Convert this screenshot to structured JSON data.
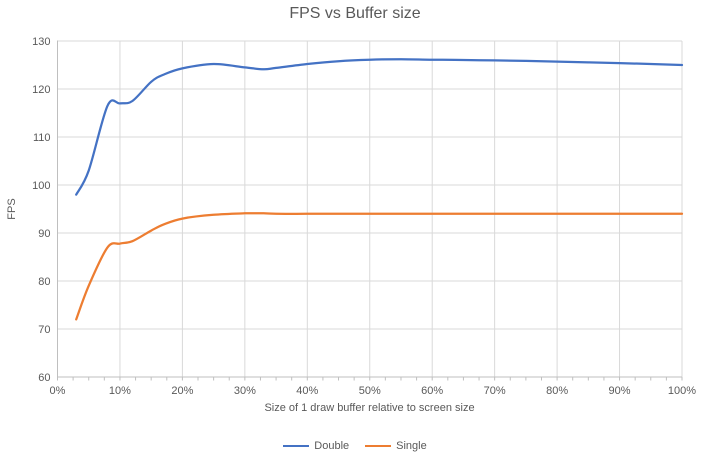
{
  "chart_data": {
    "type": "line",
    "title": "FPS vs Buffer size",
    "xlabel": "Size of 1 draw buffer relative to screen size",
    "ylabel": "FPS",
    "xlim": [
      0,
      100
    ],
    "ylim": [
      60,
      130
    ],
    "x_major_tick_percent": 10,
    "x_minor_tick_percent": 2.5,
    "x_tick_labels": [
      "0%",
      "10%",
      "20%",
      "30%",
      "40%",
      "50%",
      "60%",
      "70%",
      "80%",
      "90%",
      "100%"
    ],
    "y_ticks": [
      60,
      70,
      80,
      90,
      100,
      110,
      120,
      130
    ],
    "y_tick_labels": [
      "60",
      "70",
      "80",
      "90",
      "100",
      "110",
      "120",
      "130"
    ],
    "grid": true,
    "smooth_lines": true,
    "legend_position": "bottom",
    "x_percent": [
      3,
      5,
      8,
      10,
      12,
      15,
      17,
      20,
      25,
      30,
      33,
      35,
      40,
      45,
      50,
      55,
      60,
      65,
      70,
      75,
      80,
      85,
      90,
      95,
      100
    ],
    "series": [
      {
        "name": "Double",
        "color": "#4472C4",
        "values": [
          98,
          103,
          116.5,
          117,
          117.5,
          121.5,
          123,
          124.3,
          125.2,
          124.5,
          124.1,
          124.4,
          125.2,
          125.8,
          126.1,
          126.2,
          126.1,
          126.05,
          125.95,
          125.85,
          125.7,
          125.55,
          125.4,
          125.2,
          125
        ]
      },
      {
        "name": "Single",
        "color": "#ED7D31",
        "values": [
          72,
          79,
          87,
          87.8,
          88.3,
          90.5,
          91.8,
          93,
          93.8,
          94.1,
          94.1,
          94,
          94,
          94,
          94,
          94,
          94,
          94,
          94,
          94,
          94,
          94,
          94,
          94,
          94
        ]
      }
    ],
    "style": {
      "text_color": "#595959",
      "gridline_color": "#D9D9D9",
      "axis_color": "#BFBFBF",
      "background": "#FFFFFF"
    }
  }
}
